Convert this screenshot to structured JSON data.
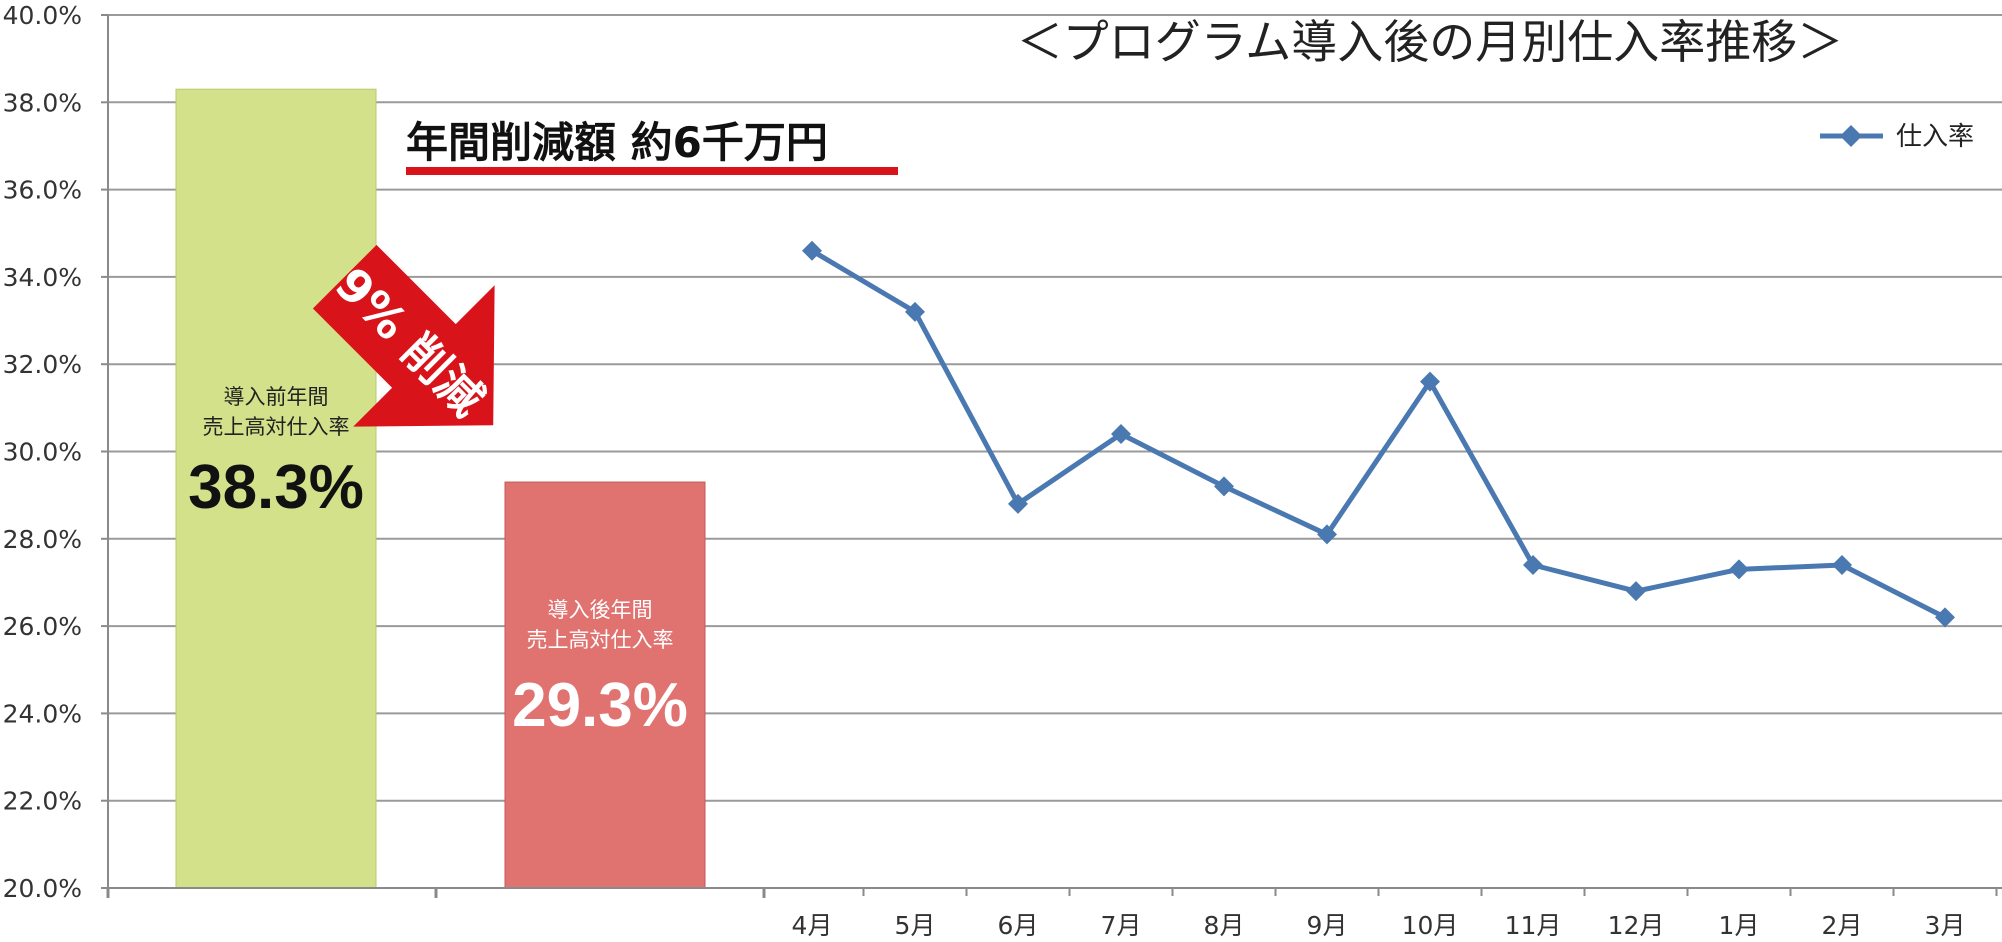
{
  "chart_data": {
    "type": "line",
    "title": "＜プログラム導入後の月別仕入率推移＞",
    "yticks": [
      "20.0%",
      "22.0%",
      "24.0%",
      "26.0%",
      "28.0%",
      "30.0%",
      "32.0%",
      "34.0%",
      "36.0%",
      "38.0%",
      "40.0%"
    ],
    "ylim": [
      20,
      40
    ],
    "grid": true,
    "legend_position": "top-right",
    "categories": [
      "4月",
      "5月",
      "6月",
      "7月",
      "8月",
      "9月",
      "10月",
      "11月",
      "12月",
      "1月",
      "2月",
      "3月"
    ],
    "series": [
      {
        "name": "仕入率",
        "values": [
          34.6,
          33.2,
          28.8,
          30.4,
          29.2,
          28.1,
          31.6,
          27.4,
          26.8,
          27.3,
          27.4,
          26.2
        ]
      }
    ],
    "comparison_bars": [
      {
        "line1": "導入前年間",
        "line2": "売上高対仕入率",
        "value": 38.3,
        "label": "38.3%"
      },
      {
        "line1": "導入後年間",
        "line2": "売上高対仕入率",
        "value": 29.3,
        "label": "29.3%"
      }
    ],
    "headline": "年間削減額 約6千万円",
    "arrow_label": "9% 削減",
    "colors": {
      "line": "#4a78b0",
      "bar_before": "#d3e28a",
      "bar_after": "#e07270",
      "arrow": "#d8141a",
      "underline": "#d8141a",
      "grid": "#9a9a9a"
    }
  }
}
